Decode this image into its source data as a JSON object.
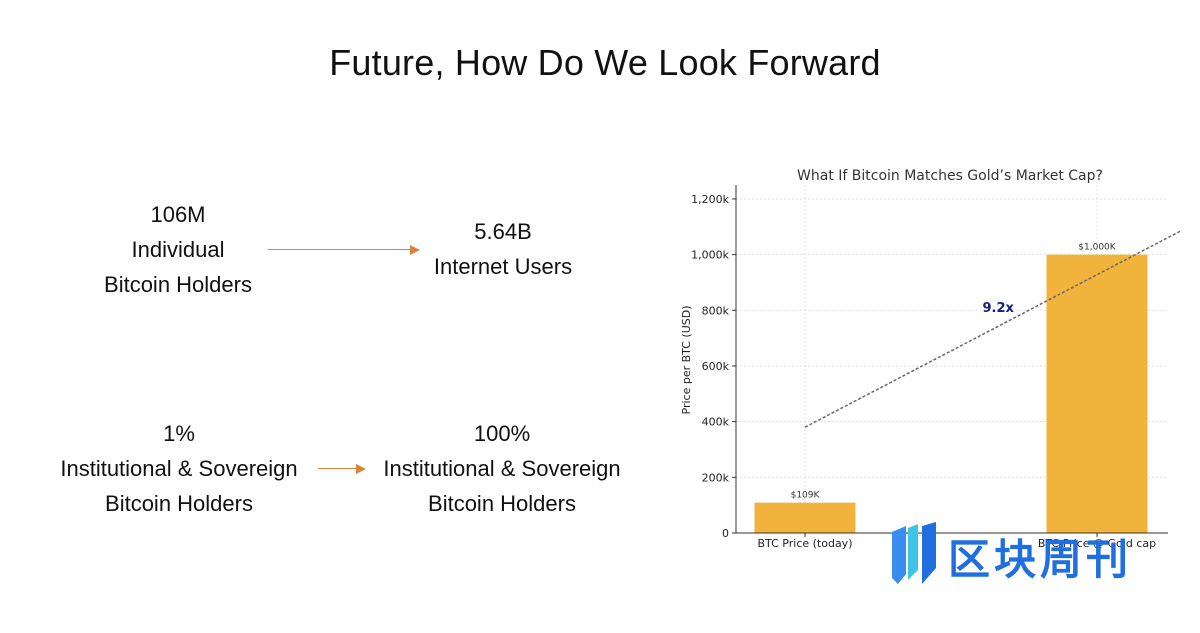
{
  "slide": {
    "title": "Future, How Do We Look Forward",
    "stats": [
      {
        "lines": [
          "106M",
          "Individual",
          "Bitcoin Holders"
        ]
      },
      {
        "lines": [
          "5.64B",
          "Internet Users"
        ]
      },
      {
        "lines": [
          "1%",
          "Institutional & Sovereign",
          "Bitcoin Holders"
        ]
      },
      {
        "lines": [
          "100%",
          "Institutional & Sovereign",
          "Bitcoin Holders"
        ]
      }
    ],
    "arrow_color": "#d9823a"
  },
  "chart_data": {
    "type": "bar",
    "title": "What If Bitcoin Matches Gold’s Market Cap?",
    "ylabel": "Price per BTC (USD)",
    "categories": [
      "BTC Price (today)",
      "BTC Price @ Gold cap"
    ],
    "values": [
      109000,
      1000000
    ],
    "data_labels": [
      "$109K",
      "$1,000K"
    ],
    "ylim": [
      0,
      1250000
    ],
    "yticks": [
      0,
      200000,
      400000,
      600000,
      800000,
      1000000,
      1200000
    ],
    "ytick_labels": [
      "0",
      "200k",
      "400k",
      "600k",
      "800k",
      "1,000k",
      "1,200k"
    ],
    "grid": true,
    "bar_color": "#f2b33d",
    "annotation": {
      "text": "9.2x",
      "color": "#14237a",
      "from": [
        0,
        380000
      ],
      "to": [
        2.85,
        1150000
      ]
    }
  },
  "watermark": {
    "text": "区块周刊",
    "color": "#1f6fe0"
  }
}
